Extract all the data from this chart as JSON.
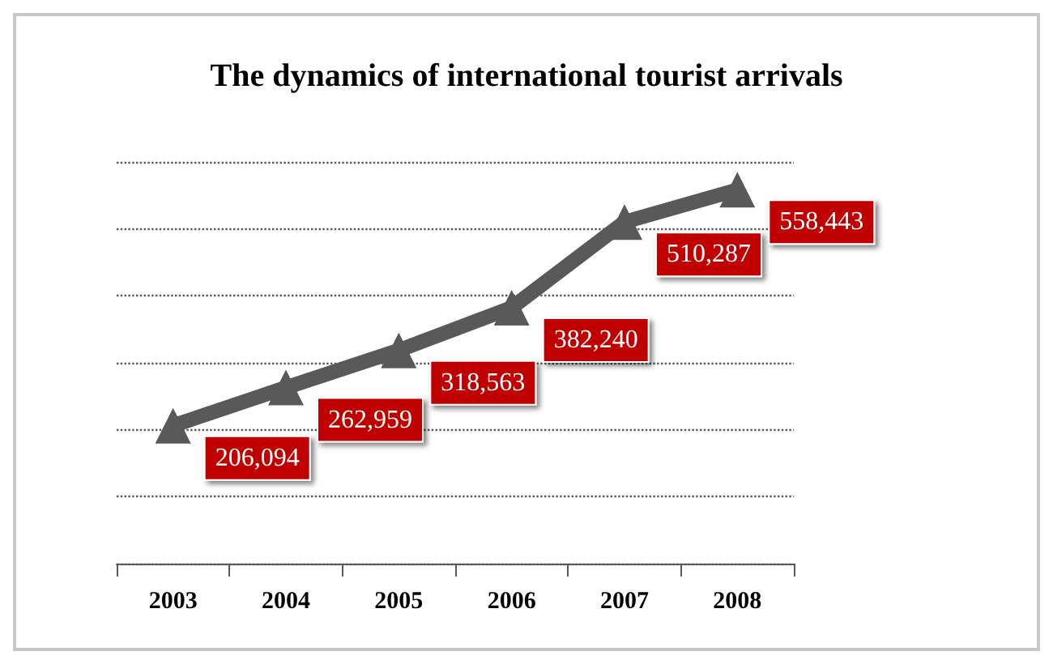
{
  "chart_data": {
    "type": "line",
    "title": "The dynamics of international tourist arrivals",
    "categories": [
      "2003",
      "2004",
      "2005",
      "2006",
      "2007",
      "2008"
    ],
    "series": [
      {
        "color": "#595959",
        "values": [
          206094,
          262959,
          318563,
          382240,
          510287,
          558443
        ],
        "value_labels": [
          "206,094",
          "262,959",
          "318,563",
          "382,240",
          "510,287",
          "558,443"
        ]
      }
    ],
    "tick_labels": "x",
    "grid": "y",
    "marker": "triangle",
    "line_style": "solid"
  }
}
